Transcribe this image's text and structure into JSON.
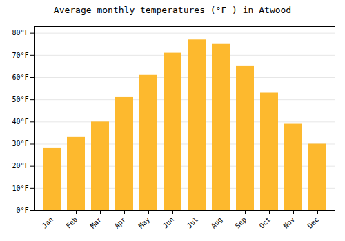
{
  "chart_data": {
    "type": "bar",
    "title": "Average monthly temperatures (°F ) in Atwood",
    "categories": [
      "Jan",
      "Feb",
      "Mar",
      "Apr",
      "May",
      "Jun",
      "Jul",
      "Aug",
      "Sep",
      "Oct",
      "Nov",
      "Dec"
    ],
    "values": [
      28,
      33,
      40,
      51,
      61,
      71,
      77,
      75,
      65,
      53,
      39,
      30
    ],
    "color": "#FDB92E",
    "ylim": [
      0,
      83
    ],
    "yticks": [
      {
        "value": 0,
        "label": "0°F"
      },
      {
        "value": 10,
        "label": "10°F"
      },
      {
        "value": 20,
        "label": "20°F"
      },
      {
        "value": 30,
        "label": "30°F"
      },
      {
        "value": 40,
        "label": "40°F"
      },
      {
        "value": 50,
        "label": "50°F"
      },
      {
        "value": 60,
        "label": "60°F"
      },
      {
        "value": 70,
        "label": "70°F"
      },
      {
        "value": 80,
        "label": "80°F"
      }
    ],
    "grid": true
  }
}
